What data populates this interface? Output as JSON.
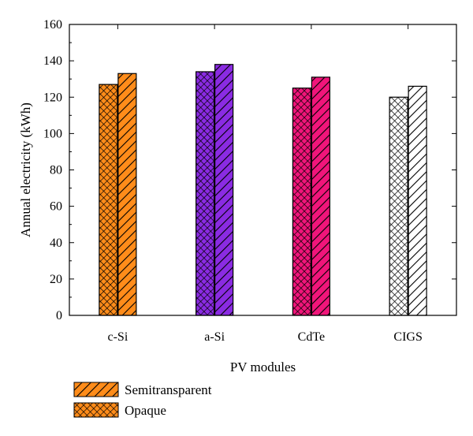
{
  "chart_data": {
    "type": "bar",
    "title": "",
    "xlabel": "PV modules",
    "ylabel": "Annual electricity (kWh)",
    "categories": [
      "c-Si",
      "a-Si",
      "CdTe",
      "CIGS"
    ],
    "ylim": [
      0,
      160
    ],
    "yticks": [
      0,
      20,
      40,
      60,
      80,
      100,
      120,
      140,
      160
    ],
    "y_minor_step": 10,
    "grid": false,
    "legend_position": "bottom-left",
    "series": [
      {
        "name": "Opaque",
        "pattern": "crosshatch",
        "values": [
          127,
          134,
          125,
          120
        ]
      },
      {
        "name": "Semitransparent",
        "pattern": "diagonal",
        "values": [
          133,
          138,
          131,
          126
        ]
      }
    ],
    "category_colors": [
      "#ff8c1a",
      "#8a2be2",
      "#f0157a",
      "#ffffff"
    ]
  }
}
